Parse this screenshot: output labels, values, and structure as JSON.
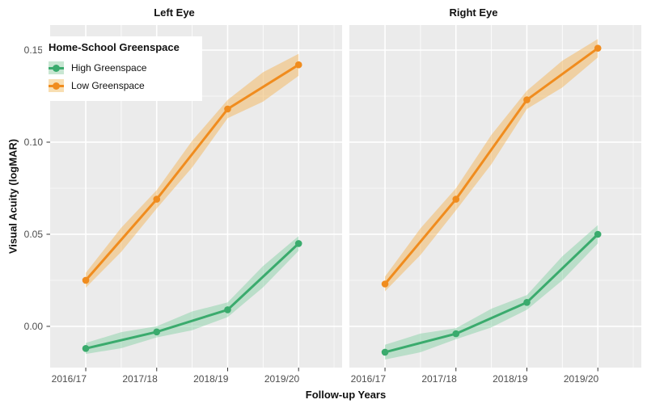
{
  "figure": {
    "background": "#ffffff",
    "panel_background": "#ebebeb",
    "grid_major_color": "#ffffff",
    "grid_minor_color": "#ffffff",
    "axis_text_color": "#4d4d4d",
    "tick_mark_color": "#333333"
  },
  "legend": {
    "title": "Home-School Greenspace",
    "items": [
      {
        "label": "High Greenspace",
        "line_color": "#3aab6d",
        "fill_color": "#c8e6d2"
      },
      {
        "label": "Low Greenspace",
        "line_color": "#f08c1e",
        "fill_color": "#f8deb2"
      }
    ]
  },
  "chart_data": {
    "type": "line",
    "title": "",
    "xlabel": "Follow-up Years",
    "ylabel": "Visual Acuity (logMAR)",
    "categories": [
      "2016/17",
      "2017/18",
      "2018/19",
      "2019/20"
    ],
    "y_ticks": [
      0.0,
      0.05,
      0.1,
      0.15
    ],
    "y_tick_labels": [
      "0.00",
      "0.05",
      "0.10",
      "0.15"
    ],
    "y_minor_ticks": [
      0.025,
      0.075,
      0.125
    ],
    "ylim": [
      -0.0224,
      0.1636
    ],
    "grid": true,
    "legend_position": "top-left-inside",
    "ribbon_opacity": 0.45,
    "panels": [
      {
        "title": "Left Eye",
        "series": [
          {
            "name": "High Greenspace",
            "color": "#3aab6d",
            "ribbon_color": "#7fcf9f",
            "values": [
              -0.012,
              -0.003,
              0.009,
              0.045
            ],
            "ci": [
              0.003,
              0.003,
              0.004,
              0.004
            ]
          },
          {
            "name": "Low Greenspace",
            "color": "#f08c1e",
            "ribbon_color": "#f5b04c",
            "values": [
              0.025,
              0.069,
              0.118,
              0.142
            ],
            "ci": [
              0.004,
              0.005,
              0.005,
              0.006
            ]
          }
        ]
      },
      {
        "title": "Right Eye",
        "series": [
          {
            "name": "High Greenspace",
            "color": "#3aab6d",
            "ribbon_color": "#7fcf9f",
            "values": [
              -0.014,
              -0.004,
              0.013,
              0.05
            ],
            "ci": [
              0.004,
              0.003,
              0.004,
              0.005
            ]
          },
          {
            "name": "Low Greenspace",
            "color": "#f08c1e",
            "ribbon_color": "#f5b04c",
            "values": [
              0.023,
              0.069,
              0.123,
              0.151
            ],
            "ci": [
              0.004,
              0.006,
              0.005,
              0.005
            ]
          }
        ]
      }
    ]
  }
}
